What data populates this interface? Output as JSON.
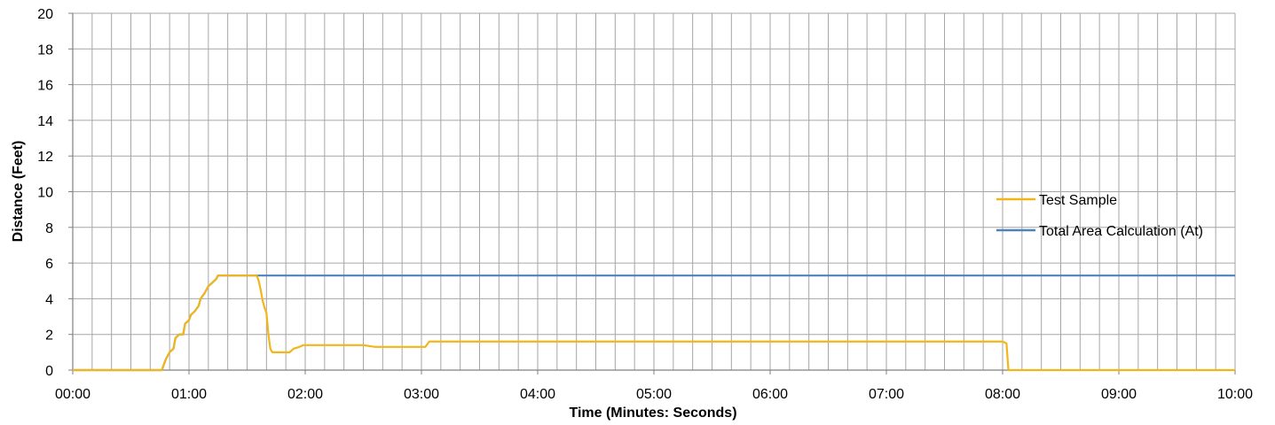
{
  "chart_data": {
    "type": "line",
    "title": "",
    "xlabel": "Time (Minutes: Seconds)",
    "ylabel": "Distance (Feet)",
    "xlim": [
      0,
      600
    ],
    "ylim": [
      0,
      20
    ],
    "x_unit": "seconds",
    "x_tick_values": [
      0,
      60,
      120,
      180,
      240,
      300,
      360,
      420,
      480,
      540,
      600
    ],
    "x_tick_labels": [
      "00:00",
      "01:00",
      "02:00",
      "03:00",
      "04:00",
      "05:00",
      "06:00",
      "07:00",
      "08:00",
      "09:00",
      "10:00"
    ],
    "y_ticks": [
      0,
      2,
      4,
      6,
      8,
      10,
      12,
      14,
      16,
      18,
      20
    ],
    "grid": true,
    "legend_position": "right",
    "series": [
      {
        "name": "Test Sample",
        "color": "#F2B619",
        "points": [
          [
            0,
            0
          ],
          [
            46,
            0
          ],
          [
            48,
            0.6
          ],
          [
            50,
            1.0
          ],
          [
            52,
            1.2
          ],
          [
            53,
            1.8
          ],
          [
            55,
            2.0
          ],
          [
            57,
            2.0
          ],
          [
            58,
            2.6
          ],
          [
            60,
            2.8
          ],
          [
            61,
            3.1
          ],
          [
            63,
            3.3
          ],
          [
            65,
            3.6
          ],
          [
            66,
            4.0
          ],
          [
            68,
            4.3
          ],
          [
            70,
            4.7
          ],
          [
            72,
            4.9
          ],
          [
            74,
            5.1
          ],
          [
            75,
            5.3
          ],
          [
            95,
            5.3
          ],
          [
            96,
            5.0
          ],
          [
            97,
            4.5
          ],
          [
            98,
            3.9
          ],
          [
            99,
            3.5
          ],
          [
            100,
            3.2
          ],
          [
            101,
            2.0
          ],
          [
            102,
            1.2
          ],
          [
            103,
            1.0
          ],
          [
            112,
            1.0
          ],
          [
            114,
            1.2
          ],
          [
            117,
            1.3
          ],
          [
            119,
            1.4
          ],
          [
            150,
            1.4
          ],
          [
            156,
            1.3
          ],
          [
            182,
            1.3
          ],
          [
            184,
            1.6
          ],
          [
            300,
            1.6
          ],
          [
            330,
            1.6
          ],
          [
            480,
            1.6
          ],
          [
            482,
            1.5
          ],
          [
            483,
            0
          ],
          [
            600,
            0
          ]
        ]
      },
      {
        "name": "Total Area Calculation (At)",
        "color": "#4F81BD",
        "points": [
          [
            0,
            0
          ],
          [
            46,
            0
          ],
          [
            48,
            0.6
          ],
          [
            50,
            1.0
          ],
          [
            52,
            1.2
          ],
          [
            53,
            1.8
          ],
          [
            55,
            2.0
          ],
          [
            57,
            2.0
          ],
          [
            58,
            2.6
          ],
          [
            60,
            2.8
          ],
          [
            61,
            3.1
          ],
          [
            63,
            3.3
          ],
          [
            65,
            3.6
          ],
          [
            66,
            4.0
          ],
          [
            68,
            4.3
          ],
          [
            70,
            4.7
          ],
          [
            72,
            4.9
          ],
          [
            74,
            5.1
          ],
          [
            75,
            5.3
          ],
          [
            600,
            5.3
          ]
        ]
      }
    ]
  }
}
